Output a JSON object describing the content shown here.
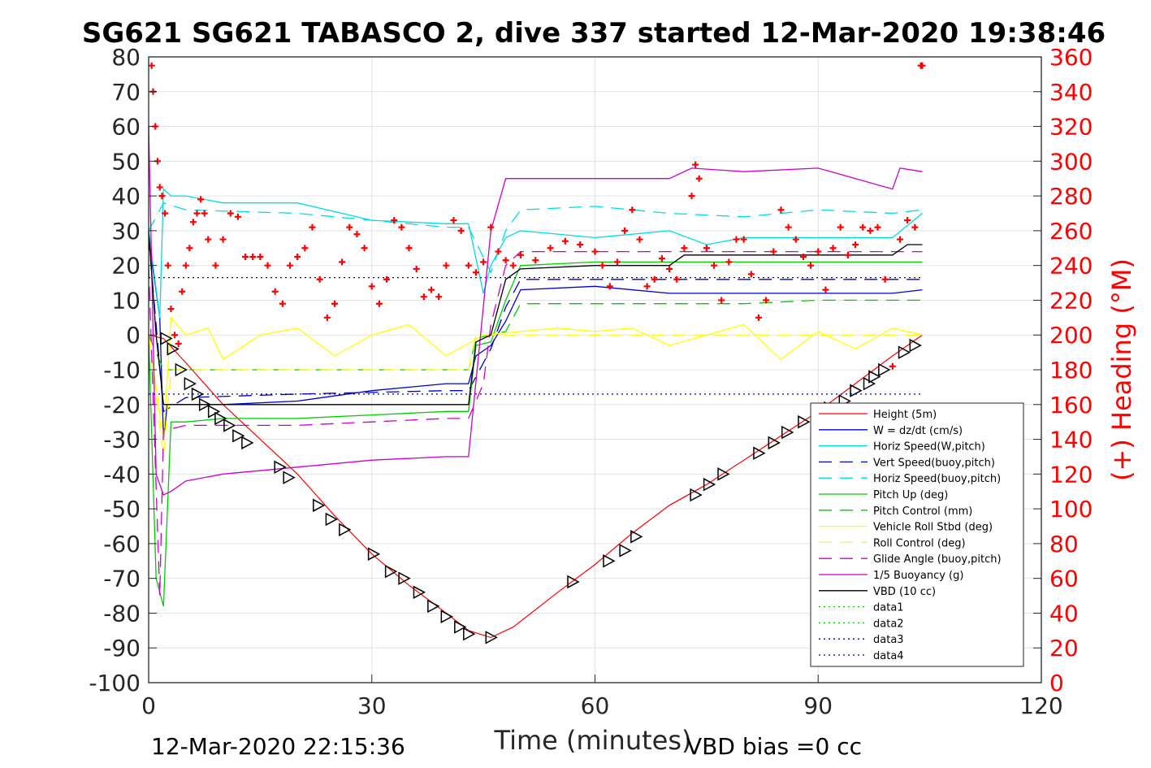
{
  "chart_data": {
    "type": "line",
    "title": "SG621 SG621 TABASCO 2, dive 337 started 12-Mar-2020 19:38:46",
    "xlabel": "Time (minutes)",
    "ylabel": "",
    "y2label": "(+) Heading (°M)",
    "xlim": [
      0,
      120
    ],
    "ylim": [
      -100,
      80
    ],
    "y2lim": [
      0,
      360
    ],
    "x_ticks": [
      0,
      30,
      60,
      90,
      120
    ],
    "y_ticks": [
      80,
      70,
      60,
      50,
      40,
      30,
      20,
      10,
      0,
      -10,
      -20,
      -30,
      -40,
      -50,
      -60,
      -70,
      -80,
      -90,
      -100
    ],
    "y2_ticks": [
      360,
      340,
      320,
      300,
      280,
      260,
      240,
      220,
      200,
      180,
      160,
      140,
      120,
      100,
      80,
      60,
      40,
      20,
      0
    ],
    "grid": true,
    "legend_position": "lower-right",
    "series": [
      {
        "name": "Height (5m)",
        "color": "#ff0000",
        "style": "solid",
        "x": [
          0,
          2,
          5,
          10,
          15,
          20,
          25,
          30,
          35,
          40,
          43,
          46,
          49,
          55,
          60,
          65,
          70,
          75,
          80,
          85,
          90,
          95,
          100,
          104
        ],
        "y": [
          0,
          -1,
          -8,
          -20,
          -30,
          -40,
          -52,
          -63,
          -72,
          -80,
          -85,
          -87,
          -84,
          -74,
          -66,
          -57,
          -49,
          -43,
          -36,
          -29,
          -22,
          -14,
          -6,
          0
        ]
      },
      {
        "name": "W = dz/dt (cm/s)",
        "color": "#0000cc",
        "style": "solid",
        "x": [
          0,
          1.5,
          2,
          2.5,
          3,
          5,
          10,
          20,
          30,
          40,
          43,
          44,
          46,
          48,
          50,
          60,
          70,
          80,
          90,
          100,
          104
        ],
        "y": [
          28,
          5,
          -30,
          -20,
          -20,
          -20,
          -20,
          -19,
          -16,
          -14,
          -14,
          -6,
          -3,
          4,
          13,
          14,
          12,
          12,
          12,
          12,
          13
        ]
      },
      {
        "name": "Horiz Speed(W,pitch)",
        "color": "#00dddd",
        "style": "solid",
        "x": [
          0,
          1.5,
          2,
          3,
          5,
          10,
          20,
          30,
          40,
          43,
          45,
          46,
          48,
          50,
          60,
          70,
          75,
          80,
          90,
          100,
          104
        ],
        "y": [
          30,
          5,
          42,
          40,
          40,
          38,
          38,
          33,
          32,
          32,
          12,
          20,
          28,
          30,
          28,
          30,
          26,
          28,
          28,
          28,
          35
        ]
      },
      {
        "name": "Vert Speed(buoy,pitch)",
        "color": "#0000cc",
        "style": "dashed",
        "x": [
          0,
          2,
          5,
          20,
          40,
          43,
          46,
          48,
          50,
          60,
          70,
          80,
          90,
          100,
          104
        ],
        "y": [
          28,
          -22,
          -18,
          -17,
          -16,
          -16,
          -4,
          8,
          16,
          16,
          16,
          16,
          16,
          16,
          16
        ]
      },
      {
        "name": "Horiz Speed(buoy,pitch)",
        "color": "#00dddd",
        "style": "dashed",
        "x": [
          0,
          2,
          5,
          20,
          40,
          43,
          46,
          48,
          50,
          60,
          70,
          80,
          90,
          100,
          104
        ],
        "y": [
          30,
          38,
          36,
          35,
          31,
          31,
          18,
          30,
          36,
          37,
          35,
          34,
          36,
          35,
          36
        ]
      },
      {
        "name": "Pitch Up (deg)",
        "color": "#00cc00",
        "style": "solid",
        "x": [
          0,
          1,
          2,
          3,
          5,
          10,
          20,
          30,
          40,
          43,
          44,
          46,
          48,
          50,
          60,
          70,
          80,
          90,
          100,
          104
        ],
        "y": [
          0,
          -70,
          -78,
          -25,
          -25,
          -24,
          -24,
          -23,
          -22,
          -22,
          -3,
          -2,
          10,
          20,
          21,
          21,
          21,
          21,
          21,
          21
        ]
      },
      {
        "name": "Pitch Control (mm)",
        "color": "#00cc00",
        "style": "dashed",
        "x": [
          0,
          2,
          3,
          20,
          40,
          43,
          44,
          48,
          50,
          60,
          70,
          80,
          90,
          100,
          104
        ],
        "y": [
          0,
          -10,
          -10,
          -10,
          -10,
          -10,
          -1,
          1,
          9,
          9,
          9,
          9,
          10,
          10,
          10
        ]
      },
      {
        "name": "Vehicle Roll Stbd (deg)",
        "color": "#ffff00",
        "style": "solid",
        "x": [
          0,
          2,
          3,
          5,
          8,
          10,
          15,
          20,
          25,
          30,
          35,
          40,
          45,
          50,
          55,
          60,
          65,
          70,
          75,
          80,
          85,
          90,
          95,
          100,
          104
        ],
        "y": [
          0,
          -30,
          5,
          0,
          2,
          -7,
          0,
          2,
          -6,
          0,
          3,
          -6,
          0,
          1,
          2,
          1,
          2,
          -3,
          0,
          3,
          -7,
          1,
          -4,
          2,
          0
        ]
      },
      {
        "name": "Roll Control (deg)",
        "color": "#ffff00",
        "style": "dashed",
        "x": [
          0,
          2,
          3,
          10,
          20,
          30,
          40,
          43,
          44,
          50,
          60,
          70,
          80,
          90,
          100,
          104
        ],
        "y": [
          0,
          -35,
          -10,
          -10,
          -10,
          -10,
          -10,
          -10,
          0,
          0,
          0,
          0,
          0,
          0,
          0,
          0
        ]
      },
      {
        "name": "Glide Angle (buoy,pitch)",
        "color": "#cc00cc",
        "style": "dashed",
        "x": [
          0,
          1.5,
          2,
          3,
          5,
          20,
          40,
          43,
          45,
          46,
          48,
          50,
          60,
          70,
          80,
          90,
          100,
          104
        ],
        "y": [
          20,
          -75,
          -27,
          -27,
          -26,
          -26,
          -24,
          -24,
          -14,
          3,
          20,
          24,
          24,
          24,
          24,
          24,
          24,
          24
        ]
      },
      {
        "name": "1/5 Buoyancy (g)",
        "color": "#cc00cc",
        "style": "solid",
        "x": [
          0,
          1,
          2,
          3,
          5,
          10,
          20,
          30,
          40,
          43,
          46,
          48,
          50,
          60,
          70,
          73,
          80,
          90,
          100,
          101,
          104
        ],
        "y": [
          60,
          -40,
          -46,
          -45,
          -42,
          -40,
          -38,
          -36,
          -35,
          -35,
          30,
          45,
          45,
          45,
          45,
          48,
          47,
          48,
          42,
          48,
          47
        ]
      },
      {
        "name": "VBD (10 cc)",
        "color": "#000000",
        "style": "solid",
        "x": [
          0,
          1,
          2,
          3,
          10,
          20,
          30,
          40,
          43,
          44,
          46,
          48,
          50,
          60,
          70,
          72,
          80,
          90,
          100,
          102,
          104
        ],
        "y": [
          30,
          0,
          -20,
          -20,
          -20,
          -20,
          -20,
          -20,
          -20,
          -2,
          0,
          16,
          19,
          20,
          20,
          23,
          23,
          23,
          23,
          26,
          26
        ]
      },
      {
        "name": "data1",
        "color": "#00cc00",
        "style": "dotted",
        "x": [],
        "y": []
      },
      {
        "name": "data2",
        "color": "#00cc00",
        "style": "dotted",
        "x": [],
        "y": []
      },
      {
        "name": "data3",
        "color": "#000088",
        "style": "dotted",
        "x": [
          0,
          104
        ],
        "y": [
          -17,
          -17
        ]
      },
      {
        "name": "data4",
        "color": "#000088",
        "style": "dotted",
        "x": [
          0,
          104
        ],
        "y": [
          16.5,
          16.5
        ]
      }
    ],
    "heading_points": {
      "axis": "right",
      "color": "#ff0000",
      "marker": "+",
      "x": [
        0.4,
        0.6,
        0.9,
        1.2,
        1.5,
        1.8,
        2.2,
        2.6,
        3.0,
        3.5,
        4.0,
        4.5,
        5.0,
        5.5,
        6.0,
        6.5,
        7.0,
        7.5,
        8.0,
        9.0,
        10.0,
        11.0,
        12.0,
        13.0,
        14.0,
        15.0,
        16.0,
        17.0,
        18.0,
        19.0,
        20.0,
        21.0,
        22.0,
        23.0,
        24.0,
        25.0,
        26.0,
        27.0,
        28.0,
        29.0,
        30.0,
        31.0,
        32.0,
        33.0,
        34.0,
        35.0,
        36.0,
        37.0,
        38.0,
        39.0,
        40.0,
        41.0,
        42.0,
        43.0,
        44.0,
        45.0,
        46.0,
        47.0,
        48.0,
        49.0,
        50.0,
        52.0,
        54.0,
        56.0,
        58.0,
        60.0,
        61.0,
        62.0,
        63.0,
        64.0,
        65.0,
        66.0,
        67.0,
        68.0,
        69.0,
        70.0,
        71.0,
        72.0,
        73.0,
        73.5,
        74.0,
        75.0,
        76.0,
        77.0,
        78.0,
        79.0,
        80.0,
        81.0,
        82.0,
        83.0,
        84.0,
        85.0,
        86.0,
        87.0,
        88.0,
        89.0,
        90.0,
        91.0,
        92.0,
        93.0,
        94.0,
        95.0,
        96.0,
        97.0,
        98.0,
        99.0,
        100.0,
        101.0,
        102.0,
        103.0,
        103.8,
        104.0
      ],
      "y": [
        355,
        340,
        320,
        300,
        285,
        280,
        270,
        240,
        215,
        200,
        195,
        225,
        240,
        250,
        265,
        270,
        278,
        270,
        255,
        240,
        255,
        270,
        268,
        245,
        245,
        245,
        240,
        225,
        218,
        240,
        245,
        250,
        262,
        232,
        210,
        218,
        242,
        262,
        258,
        250,
        228,
        218,
        232,
        266,
        262,
        250,
        238,
        222,
        226,
        222,
        240,
        266,
        260,
        240,
        236,
        242,
        262,
        248,
        243,
        240,
        246,
        243,
        250,
        254,
        252,
        248,
        240,
        228,
        242,
        260,
        272,
        255,
        228,
        232,
        244,
        238,
        232,
        250,
        280,
        298,
        290,
        250,
        240,
        220,
        242,
        255,
        255,
        235,
        210,
        220,
        248,
        272,
        262,
        255,
        245,
        240,
        248,
        226,
        250,
        262,
        246,
        252,
        262,
        260,
        262,
        232,
        182,
        255,
        266,
        262,
        355,
        355
      ]
    },
    "glider_markers": {
      "marker": "triangle",
      "color": "#000000",
      "x": [
        2.3,
        3.2,
        4.3,
        5.5,
        6.5,
        7.5,
        8.7,
        9.6,
        10.8,
        12.0,
        13.2,
        17.6,
        18.8,
        22.8,
        24.5,
        26.3,
        30.2,
        32.5,
        34.3,
        36.3,
        38.2,
        40.0,
        41.8,
        43.0,
        46.0,
        57.0,
        61.8,
        64.0,
        65.5,
        73.5,
        75.3,
        77.2,
        82.0,
        84.0,
        85.8,
        88.0,
        90.0,
        91.5,
        93.5,
        95.0,
        96.8,
        97.5,
        98.8,
        101.5,
        103.0
      ],
      "y": [
        -1,
        -4,
        -10,
        -14,
        -17,
        -20,
        -22,
        -24,
        -26,
        -29,
        -31,
        -38,
        -41,
        -49,
        -53,
        -56,
        -63,
        -68,
        -70,
        -74,
        -78,
        -81,
        -84,
        -86,
        -87,
        -71,
        -65,
        -62,
        -58,
        -46,
        -43,
        -40,
        -34,
        -31,
        -28,
        -25,
        -23,
        -21,
        -19,
        -16,
        -14,
        -12,
        -10,
        -5,
        -3
      ]
    },
    "footer_left": "12-Mar-2020 22:15:36",
    "footer_right": "VBD bias =0 cc"
  }
}
